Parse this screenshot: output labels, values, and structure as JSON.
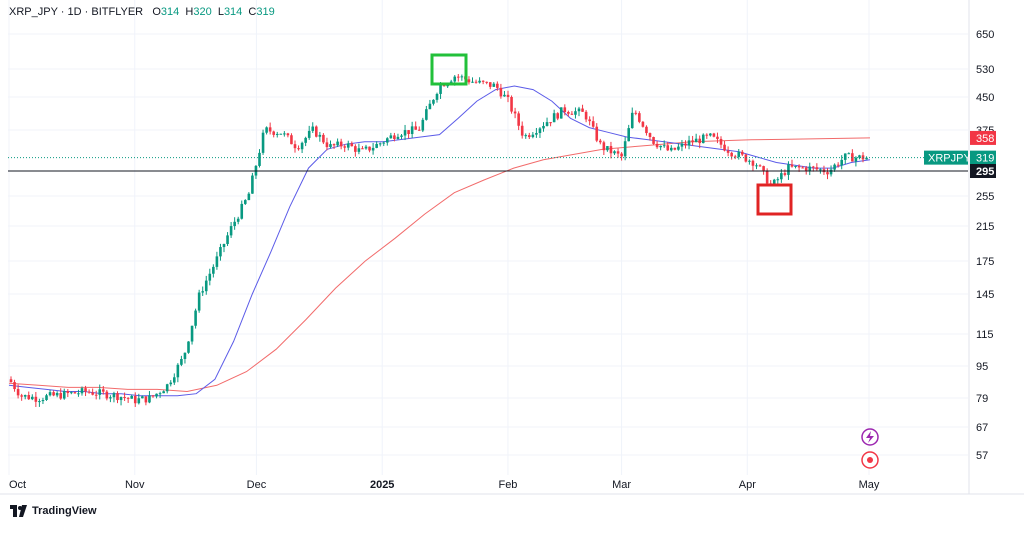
{
  "header": {
    "symbol": "XRP_JPY",
    "interval": "1D",
    "exchange": "BITFLYER",
    "o_label": "O",
    "o_value": "314",
    "h_label": "H",
    "h_value": "320",
    "l_label": "L",
    "l_value": "314",
    "c_label": "C",
    "c_value": "319"
  },
  "brand": {
    "name": "TradingView"
  },
  "colors": {
    "up": "#089981",
    "down": "#f23645",
    "ma_fast": "#5b5be8",
    "ma_slow": "#f26b6b",
    "grid": "#f0f3fa",
    "axis_text": "#131722",
    "highlight_high": "#22c03a",
    "highlight_low": "#e02424",
    "dark_line": "#131722"
  },
  "chart_data": {
    "type": "candlestick",
    "y_scale": "log",
    "ylim": [
      50,
      870
    ],
    "y_ticks": [
      57,
      67,
      79,
      95,
      115,
      145,
      175,
      215,
      255,
      295,
      375,
      450,
      530,
      650
    ],
    "x_ticks": [
      "Oct",
      "Nov",
      "Dec",
      "2025",
      "Feb",
      "Mar",
      "Apr",
      "May"
    ],
    "x_range": [
      "2024-09-30",
      "2025-05-31"
    ],
    "candle_closes": [
      [
        "2024-10-01",
        88
      ],
      [
        "2024-10-04",
        80
      ],
      [
        "2024-10-08",
        79
      ],
      [
        "2024-10-12",
        80
      ],
      [
        "2024-10-16",
        81
      ],
      [
        "2024-10-20",
        82
      ],
      [
        "2024-10-24",
        81
      ],
      [
        "2024-10-28",
        80
      ],
      [
        "2024-11-01",
        78
      ],
      [
        "2024-11-05",
        79
      ],
      [
        "2024-11-09",
        85
      ],
      [
        "2024-11-13",
        100
      ],
      [
        "2024-11-17",
        145
      ],
      [
        "2024-11-21",
        175
      ],
      [
        "2024-11-25",
        215
      ],
      [
        "2024-11-29",
        255
      ],
      [
        "2024-12-03",
        375
      ],
      [
        "2024-12-07",
        370
      ],
      [
        "2024-12-11",
        340
      ],
      [
        "2024-12-15",
        375
      ],
      [
        "2024-12-19",
        340
      ],
      [
        "2024-12-23",
        345
      ],
      [
        "2024-12-27",
        330
      ],
      [
        "2024-12-31",
        345
      ],
      [
        "2025-01-05",
        370
      ],
      [
        "2025-01-10",
        375
      ],
      [
        "2025-01-15",
        480
      ],
      [
        "2025-01-19",
        510
      ],
      [
        "2025-01-24",
        490
      ],
      [
        "2025-01-29",
        480
      ],
      [
        "2025-02-01",
        440
      ],
      [
        "2025-02-05",
        360
      ],
      [
        "2025-02-10",
        390
      ],
      [
        "2025-02-15",
        420
      ],
      [
        "2025-02-20",
        410
      ],
      [
        "2025-02-24",
        340
      ],
      [
        "2025-03-01",
        320
      ],
      [
        "2025-03-04",
        420
      ],
      [
        "2025-03-09",
        350
      ],
      [
        "2025-03-13",
        330
      ],
      [
        "2025-03-18",
        350
      ],
      [
        "2025-03-23",
        360
      ],
      [
        "2025-03-28",
        330
      ],
      [
        "2025-04-03",
        310
      ],
      [
        "2025-04-07",
        270
      ],
      [
        "2025-04-11",
        300
      ],
      [
        "2025-04-16",
        300
      ],
      [
        "2025-04-21",
        295
      ],
      [
        "2025-04-25",
        320
      ],
      [
        "2025-04-30",
        319
      ]
    ],
    "series": [
      {
        "values": [
          85,
          84,
          83,
          82,
          82,
          81,
          81,
          80,
          80,
          80,
          81,
          88,
          110,
          145,
          185,
          240,
          300,
          335,
          345,
          350,
          350,
          355,
          360,
          365,
          400,
          440,
          470,
          480,
          470,
          440,
          400,
          380,
          370,
          360,
          355,
          350,
          345,
          340,
          335,
          330,
          320,
          310,
          305,
          300,
          300,
          310,
          315
        ]
      },
      {
        "values": [
          86,
          85,
          84,
          84,
          83,
          83,
          82,
          85,
          92,
          105,
          125,
          150,
          175,
          200,
          230,
          260,
          280,
          300,
          315,
          325,
          335,
          340,
          345,
          350,
          352,
          354,
          355,
          356,
          357,
          358
        ]
      }
    ],
    "price_labels": {
      "last": {
        "name": "XRPJPY",
        "value": 319
      },
      "ma_slow": 358,
      "line": 295
    },
    "annotations": [
      {
        "type": "box",
        "color": "highlight_high"
      },
      {
        "type": "box",
        "color": "highlight_low"
      }
    ]
  }
}
